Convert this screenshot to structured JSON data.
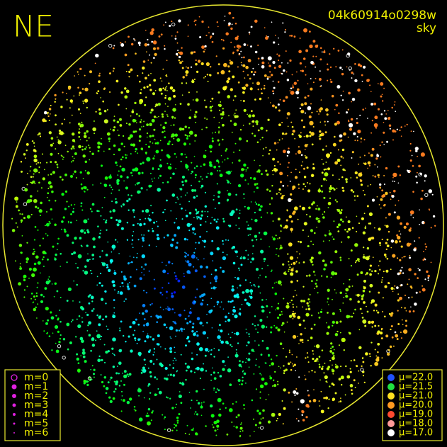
{
  "header": {
    "corner": "NE",
    "frame_id": "04k60914o0298w",
    "subtitle": "sky"
  },
  "magnitude_legend": {
    "items": [
      "m=0",
      "m=1",
      "m=2",
      "m=3",
      "m=4",
      "m=5",
      "m=6"
    ]
  },
  "brightness_legend": {
    "items": [
      {
        "label": "μ=22.0",
        "color": "#2050ff"
      },
      {
        "label": "μ=21.5",
        "color": "#20e040"
      },
      {
        "label": "μ=21.0",
        "color": "#ffe020"
      },
      {
        "label": "μ=20.0",
        "color": "#ff9a20"
      },
      {
        "label": "μ=19.0",
        "color": "#ff4a30"
      },
      {
        "label": "μ=18.0",
        "color": "#ff9a9a"
      },
      {
        "label": "μ=17.0",
        "color": "#ffffff"
      }
    ]
  }
}
